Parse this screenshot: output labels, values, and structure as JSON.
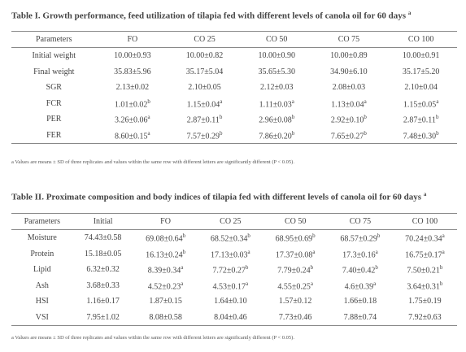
{
  "tables": [
    {
      "title": "Table I. Growth performance, feed utilization of tilapia fed with different levels of canola oil for 60 days",
      "title_sup": "a",
      "header": [
        "Parameters",
        "FO",
        "CO 25",
        "CO 50",
        "CO 75",
        "CO 100"
      ],
      "rows": [
        [
          "Initial weight",
          "10.00±0.93",
          "10.00±0.82",
          "10.00±0.90",
          "10.00±0.89",
          "10.00±0.91"
        ],
        [
          "Final weight",
          "35.83±5.96",
          "35.17±5.04",
          "35.65±5.30",
          "34.90±6.10",
          "35.17±5.20"
        ],
        [
          "SGR",
          "2.13±0.02",
          "2.10±0.05",
          "2.12±0.03",
          "2.08±0.03",
          "2.10±0.04"
        ],
        [
          "FCR",
          {
            "text": "1.01±0.02",
            "sup": "b"
          },
          {
            "text": "1.15±0.04",
            "sup": "a"
          },
          {
            "text": "1.11±0.03",
            "sup": "a"
          },
          {
            "text": "1.13±0.04",
            "sup": "a"
          },
          {
            "text": "1.15±0.05",
            "sup": "a"
          }
        ],
        [
          "PER",
          {
            "text": "3.26±0.06",
            "sup": "a"
          },
          {
            "text": "2.87±0.11",
            "sup": "b"
          },
          {
            "text": "2.96±0.08",
            "sup": "b"
          },
          {
            "text": "2.92±0.10",
            "sup": "b"
          },
          {
            "text": "2.87±0.11",
            "sup": "b"
          }
        ],
        [
          "FER",
          {
            "text": "8.60±0.15",
            "sup": "a"
          },
          {
            "text": "7.57±0.29",
            "sup": "b"
          },
          {
            "text": "7.86±0.20",
            "sup": "b"
          },
          {
            "text": "7.65±0.27",
            "sup": "b"
          },
          {
            "text": "7.48±0.30",
            "sup": "b"
          }
        ]
      ],
      "note": "a Values are means ± SD of three replicates and values within the same row with different letters are significantly different (P < 0.05)."
    },
    {
      "title": "Table II. Proximate composition and body indices of tilapia fed with different levels of canola oil for 60 days",
      "title_sup": "a",
      "header": [
        "Parameters",
        "Initial",
        "FO",
        "CO 25",
        "CO 50",
        "CO 75",
        "CO 100"
      ],
      "rows": [
        [
          "Moisture",
          "74.43±0.58",
          {
            "text": "69.08±0.64",
            "sup": "b"
          },
          {
            "text": "68.52±0.34",
            "sup": "b"
          },
          {
            "text": "68.95±0.69",
            "sup": "b"
          },
          {
            "text": "68.57±0.29",
            "sup": "b"
          },
          {
            "text": "70.24±0.34",
            "sup": "a"
          }
        ],
        [
          "Protein",
          "15.18±0.05",
          {
            "text": "16.13±0.24",
            "sup": "b"
          },
          {
            "text": "17.13±0.03",
            "sup": "a"
          },
          {
            "text": "17.37±0.08",
            "sup": "a"
          },
          {
            "text": "17.3±0.16",
            "sup": "a"
          },
          {
            "text": "16.75±0.17",
            "sup": "a"
          }
        ],
        [
          "Lipid",
          "6.32±0.32",
          {
            "text": "8.39±0.34",
            "sup": "a"
          },
          {
            "text": "7.72±0.27",
            "sup": "b"
          },
          {
            "text": "7.79±0.24",
            "sup": "b"
          },
          {
            "text": "7.40±0.42",
            "sup": "b"
          },
          {
            "text": "7.50±0.21",
            "sup": "b"
          }
        ],
        [
          "Ash",
          "3.68±0.33",
          {
            "text": "4.52±0.23",
            "sup": "a"
          },
          {
            "text": "4.53±0.17",
            "sup": "a"
          },
          {
            "text": "4.55±0.25",
            "sup": "a"
          },
          {
            "text": "4.6±0.39",
            "sup": "a"
          },
          {
            "text": "3.64±0.31",
            "sup": "b"
          }
        ],
        [
          "HSI",
          "1.16±0.17",
          "1.87±0.15",
          "1.64±0.10",
          "1.57±0.12",
          "1.66±0.18",
          "1.75±0.19"
        ],
        [
          "VSI",
          "7.95±1.02",
          "8.08±0.58",
          "8.04±0.46",
          "7.73±0.46",
          "7.88±0.74",
          "7.92±0.63"
        ]
      ],
      "note": "a Values are means ± SD of three replicates and values within the same row with different letters are significantly different (P < 0.05)."
    }
  ]
}
